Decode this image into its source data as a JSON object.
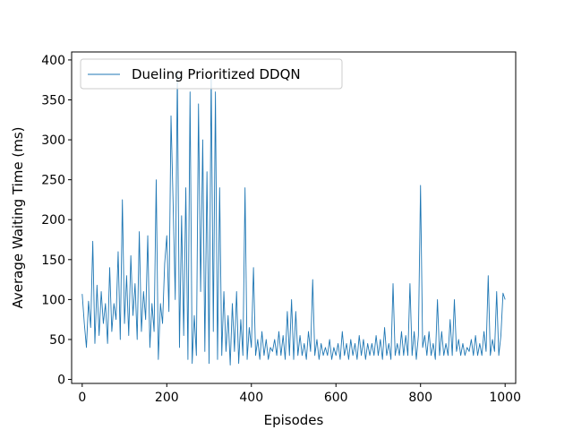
{
  "chart_data": {
    "type": "line",
    "title": "",
    "xlabel": "Episodes",
    "ylabel": "Average Waiting Time (ms)",
    "xlim": [
      -25,
      1025
    ],
    "ylim": [
      -5,
      410
    ],
    "x_ticks": [
      0,
      200,
      400,
      600,
      800,
      1000
    ],
    "y_ticks": [
      0,
      50,
      100,
      150,
      200,
      250,
      300,
      350,
      400
    ],
    "legend_position": "upper-left",
    "grid": false,
    "series": [
      {
        "name": "Dueling Prioritized DDQN",
        "color": "#1f77b4",
        "x": [
          0,
          5,
          10,
          15,
          20,
          25,
          30,
          35,
          40,
          45,
          50,
          55,
          60,
          65,
          70,
          75,
          80,
          85,
          90,
          95,
          100,
          105,
          110,
          115,
          120,
          125,
          130,
          135,
          140,
          145,
          150,
          155,
          160,
          165,
          170,
          175,
          180,
          185,
          190,
          195,
          200,
          205,
          210,
          215,
          220,
          225,
          230,
          235,
          240,
          245,
          250,
          255,
          260,
          265,
          270,
          275,
          280,
          285,
          290,
          295,
          300,
          305,
          310,
          315,
          320,
          325,
          330,
          335,
          340,
          345,
          350,
          355,
          360,
          365,
          370,
          375,
          380,
          385,
          390,
          395,
          400,
          405,
          410,
          415,
          420,
          425,
          430,
          435,
          440,
          445,
          450,
          455,
          460,
          465,
          470,
          475,
          480,
          485,
          490,
          495,
          500,
          505,
          510,
          515,
          520,
          525,
          530,
          535,
          540,
          545,
          550,
          555,
          560,
          565,
          570,
          575,
          580,
          585,
          590,
          595,
          600,
          605,
          610,
          615,
          620,
          625,
          630,
          635,
          640,
          645,
          650,
          655,
          660,
          665,
          670,
          675,
          680,
          685,
          690,
          695,
          700,
          705,
          710,
          715,
          720,
          725,
          730,
          735,
          740,
          745,
          750,
          755,
          760,
          765,
          770,
          775,
          780,
          785,
          790,
          795,
          800,
          805,
          810,
          815,
          820,
          825,
          830,
          835,
          840,
          845,
          850,
          855,
          860,
          865,
          870,
          875,
          880,
          885,
          890,
          895,
          900,
          905,
          910,
          915,
          920,
          925,
          930,
          935,
          940,
          945,
          950,
          955,
          960,
          965,
          970,
          975,
          980,
          985,
          990,
          995,
          1000
        ],
        "values": [
          107,
          70,
          40,
          98,
          65,
          173,
          45,
          118,
          55,
          110,
          70,
          95,
          45,
          140,
          60,
          95,
          75,
          160,
          50,
          225,
          70,
          130,
          55,
          155,
          80,
          120,
          50,
          185,
          60,
          110,
          75,
          180,
          40,
          95,
          60,
          250,
          25,
          95,
          70,
          145,
          180,
          85,
          330,
          220,
          100,
          383,
          40,
          205,
          55,
          240,
          25,
          360,
          20,
          80,
          30,
          345,
          110,
          300,
          35,
          260,
          20,
          385,
          60,
          360,
          25,
          240,
          30,
          110,
          35,
          80,
          18,
          95,
          35,
          110,
          20,
          75,
          30,
          240,
          25,
          65,
          40,
          140,
          30,
          50,
          25,
          60,
          30,
          50,
          25,
          40,
          35,
          50,
          30,
          60,
          30,
          55,
          25,
          85,
          30,
          100,
          25,
          85,
          30,
          55,
          30,
          45,
          25,
          60,
          35,
          125,
          30,
          50,
          25,
          45,
          30,
          40,
          30,
          50,
          25,
          40,
          30,
          45,
          25,
          60,
          30,
          45,
          25,
          50,
          30,
          45,
          25,
          55,
          30,
          50,
          25,
          45,
          30,
          45,
          30,
          55,
          30,
          50,
          25,
          65,
          30,
          45,
          25,
          120,
          30,
          45,
          30,
          60,
          30,
          55,
          30,
          120,
          30,
          60,
          25,
          55,
          243,
          40,
          55,
          30,
          60,
          30,
          45,
          25,
          100,
          30,
          60,
          30,
          45,
          30,
          75,
          30,
          100,
          35,
          50,
          30,
          45,
          30,
          40,
          35,
          50,
          30,
          55,
          30,
          45,
          30,
          60,
          35,
          130,
          30,
          50,
          35,
          110,
          30,
          55,
          108,
          100
        ]
      }
    ]
  }
}
